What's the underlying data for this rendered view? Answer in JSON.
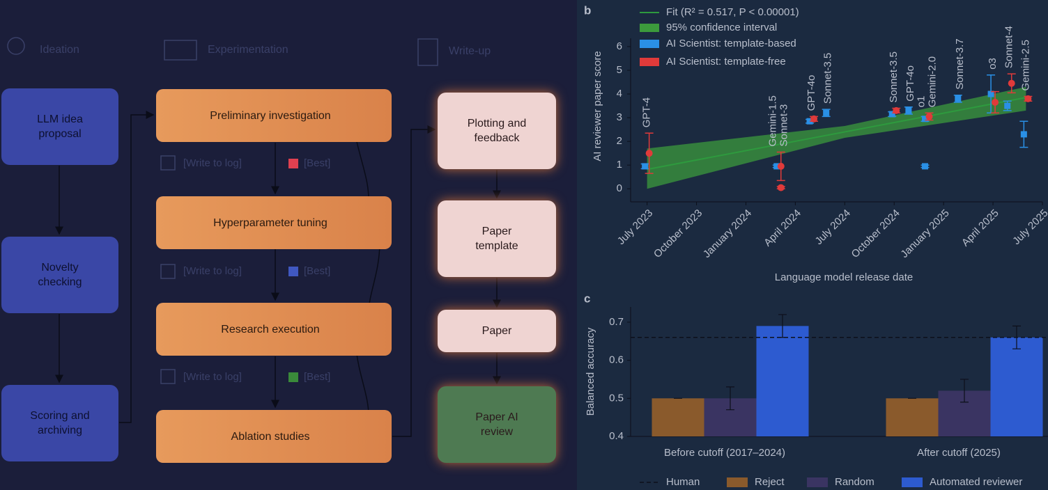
{
  "diagram": {
    "columns": [
      {
        "title": "Ideation",
        "nodes": [
          "LLM idea proposal",
          "Novelty checking",
          "Scoring and archiving"
        ]
      },
      {
        "title": "Experimentation",
        "nodes": [
          "Preliminary investigation",
          "Hyperparameter tuning",
          "Research execution",
          "Ablation studies"
        ]
      },
      {
        "title": "Write-up",
        "nodes": [
          "Plotting and feedback",
          "Paper template",
          "Paper",
          "Paper AI review"
        ]
      }
    ],
    "log_rows": [
      {
        "log": "[Write to log]",
        "best": "[Best]"
      },
      {
        "log": "[Write to log]",
        "best": "[Best]"
      },
      {
        "log": "[Write to log]",
        "best": "[Best]"
      }
    ]
  },
  "chart_data": [
    {
      "type": "scatter",
      "label": "b",
      "x_label": "Language model release date",
      "y_label": "AI reviewer paper score",
      "xlim": [
        "2023-06",
        "2025-07"
      ],
      "xticks": [
        {
          "value": "2023-07",
          "label": "July 2023"
        },
        {
          "value": "2023-10",
          "label": "October 2023"
        },
        {
          "value": "2024-01",
          "label": "January 2024"
        },
        {
          "value": "2024-04",
          "label": "April 2024"
        },
        {
          "value": "2024-07",
          "label": "July 2024"
        },
        {
          "value": "2024-10",
          "label": "October 2024"
        },
        {
          "value": "2025-01",
          "label": "January 2025"
        },
        {
          "value": "2025-04",
          "label": "April 2025"
        },
        {
          "value": "2025-07",
          "label": "July 2025"
        }
      ],
      "ylim": [
        -0.55,
        6.35
      ],
      "yticks": [
        0,
        1,
        2,
        3,
        4,
        5,
        6
      ],
      "fit": {
        "name": "Fit (R² = 0.517, P < 0.00001)",
        "color": "#2e9a3e",
        "x": [
          "2023-07",
          "2025-06"
        ],
        "values": [
          0.82,
          3.85
        ]
      },
      "ci": {
        "name": "95% confidence interval",
        "color": "#3c9a3c",
        "x": [
          "2023-07",
          "2024-07",
          "2025-06"
        ],
        "lower": [
          0.0,
          2.15,
          3.3
        ],
        "upper": [
          1.7,
          2.65,
          4.3
        ]
      },
      "series": [
        {
          "name": "AI Scientist: template-based",
          "color": "#2a90e6",
          "x": [
            "2023-07",
            "2024-03",
            "2024-05",
            "2024-06",
            "2024-10",
            "2024-11",
            "2024-12",
            "2024-12",
            "2025-02",
            "2025-04",
            "2025-05",
            "2025-06"
          ],
          "values": [
            0.95,
            0.95,
            2.85,
            3.2,
            3.15,
            3.3,
            2.95,
            0.95,
            3.8,
            4.0,
            3.5,
            2.3
          ],
          "errors": [
            0.1,
            0.05,
            0.08,
            0.15,
            0.1,
            0.15,
            0.1,
            0.05,
            0.15,
            0.8,
            0.2,
            0.55
          ]
        },
        {
          "name": "AI Scientist: template-free",
          "color": "#e03a3a",
          "x": [
            "2023-07",
            "2024-03",
            "2024-03",
            "2024-05",
            "2024-10",
            "2024-12",
            "2025-04",
            "2025-05",
            "2025-06"
          ],
          "values": [
            1.5,
            0.95,
            0.05,
            2.95,
            3.3,
            3.05,
            3.65,
            4.45,
            3.8
          ],
          "errors": [
            0.85,
            0.6,
            0.05,
            0.1,
            0.1,
            0.15,
            0.45,
            0.4,
            0.1
          ]
        }
      ],
      "annotations": [
        {
          "text": "GPT-4",
          "x": "2023-07"
        },
        {
          "text": "Gemini-1.5",
          "x": "2024-03"
        },
        {
          "text": "Sonnet-3",
          "x": "2024-03"
        },
        {
          "text": "GPT-4o",
          "x": "2024-05"
        },
        {
          "text": "Sonnet-3.5",
          "x": "2024-06"
        },
        {
          "text": "Sonnet-3.5",
          "x": "2024-10"
        },
        {
          "text": "GPT-4o",
          "x": "2024-11"
        },
        {
          "text": "o1",
          "x": "2024-12"
        },
        {
          "text": "Gemini-2.0",
          "x": "2024-12"
        },
        {
          "text": "Sonnet-3.7",
          "x": "2025-02"
        },
        {
          "text": "o3",
          "x": "2025-04"
        },
        {
          "text": "Sonnet-4",
          "x": "2025-05"
        },
        {
          "text": "Gemini-2.5",
          "x": "2025-06"
        }
      ]
    },
    {
      "type": "bar",
      "label": "c",
      "y_label": "Balanced accuracy",
      "categories": [
        "Before cutoff (2017–2024)",
        "After cutoff (2025)"
      ],
      "ylim": [
        0.4,
        0.74
      ],
      "yticks": [
        0.4,
        0.5,
        0.6,
        0.7
      ],
      "reference_line": {
        "name": "Human",
        "value": 0.66
      },
      "series": [
        {
          "name": "Reject",
          "color": "#8a5a2c",
          "values": [
            0.5,
            0.5
          ],
          "errors": [
            0,
            0
          ]
        },
        {
          "name": "Random",
          "color": "#3a3462",
          "values": [
            0.5,
            0.52
          ],
          "errors": [
            0.03,
            0.03
          ]
        },
        {
          "name": "Automated reviewer",
          "color": "#2d5bd0",
          "values": [
            0.69,
            0.66
          ],
          "errors": [
            0.03,
            0.03
          ]
        }
      ]
    }
  ]
}
